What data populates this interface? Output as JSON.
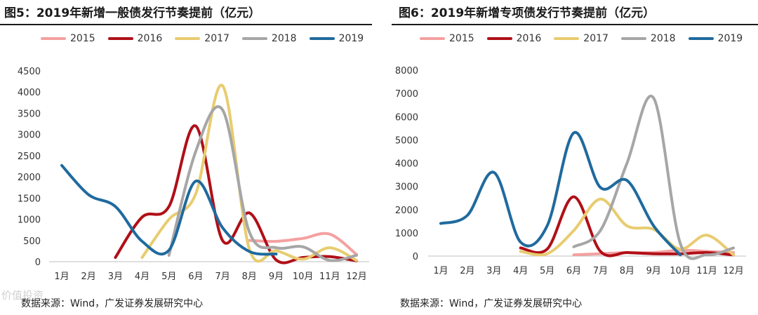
{
  "watermark": "价值投资",
  "legend_keys": [
    "2015",
    "2016",
    "2017",
    "2018",
    "2019"
  ],
  "series_colors": {
    "2015": "#f4a0a0",
    "2016": "#b00f17",
    "2017": "#e8cc70",
    "2018": "#a6a6a6",
    "2019": "#1f6a9e"
  },
  "chart_data": [
    {
      "type": "line",
      "title": "图5：2019年新增一般债发行节奏提前（亿元）",
      "source": "数据来源：Wind，广发证券发展研究中心",
      "categories": [
        "1月",
        "2月",
        "3月",
        "4月",
        "5月",
        "6月",
        "7月",
        "8月",
        "9月",
        "10月",
        "11月",
        "12月"
      ],
      "ylim": [
        0,
        4500
      ],
      "yticks": [
        0,
        500,
        1000,
        1500,
        2000,
        2500,
        3000,
        3500,
        4000,
        4500
      ],
      "legend": "top",
      "grid": false,
      "series": [
        {
          "name": "2015",
          "values": [
            null,
            null,
            null,
            null,
            null,
            null,
            null,
            500,
            480,
            550,
            650,
            170
          ]
        },
        {
          "name": "2016",
          "values": [
            null,
            null,
            100,
            1050,
            1300,
            3200,
            500,
            1150,
            40,
            100,
            120,
            20
          ]
        },
        {
          "name": "2017",
          "values": [
            null,
            null,
            null,
            100,
            1000,
            1600,
            4150,
            300,
            260,
            60,
            330,
            30
          ]
        },
        {
          "name": "2018",
          "values": [
            null,
            null,
            null,
            null,
            150,
            2600,
            3580,
            700,
            330,
            350,
            30,
            150
          ]
        },
        {
          "name": "2019",
          "values": [
            2270,
            1580,
            1300,
            480,
            270,
            1900,
            800,
            240,
            180,
            null,
            null,
            null
          ]
        }
      ]
    },
    {
      "type": "line",
      "title": "图6：2019年新增专项债发行节奏提前（亿元）",
      "source": "数据来源：Wind，广发证券发展研究中心",
      "categories": [
        "1月",
        "2月",
        "3月",
        "4月",
        "5月",
        "6月",
        "7月",
        "8月",
        "9月",
        "10月",
        "11月",
        "12月"
      ],
      "ylim": [
        0,
        8000
      ],
      "yticks": [
        0,
        1000,
        2000,
        3000,
        4000,
        5000,
        6000,
        7000,
        8000
      ],
      "legend": "top",
      "grid": false,
      "series": [
        {
          "name": "2015",
          "values": [
            null,
            null,
            null,
            null,
            null,
            50,
            100,
            150,
            150,
            250,
            200,
            150
          ]
        },
        {
          "name": "2016",
          "values": [
            null,
            null,
            null,
            350,
            300,
            2550,
            200,
            150,
            100,
            100,
            150,
            50
          ]
        },
        {
          "name": "2017",
          "values": [
            null,
            null,
            null,
            200,
            100,
            1100,
            2450,
            1300,
            1150,
            300,
            900,
            50
          ]
        },
        {
          "name": "2018",
          "values": [
            null,
            null,
            null,
            null,
            null,
            400,
            1100,
            4000,
            6800,
            550,
            50,
            350
          ]
        },
        {
          "name": "2019",
          "values": [
            1400,
            1750,
            3600,
            600,
            1300,
            5300,
            2950,
            3250,
            1300,
            50,
            null,
            null
          ]
        }
      ]
    }
  ]
}
